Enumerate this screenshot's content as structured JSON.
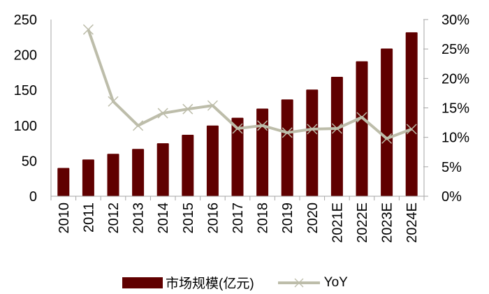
{
  "chart_data": {
    "type": "bar+line",
    "title": "",
    "categories": [
      "2010",
      "2011",
      "2012",
      "2013",
      "2014",
      "2015",
      "2016",
      "2017",
      "2018",
      "2019",
      "2020",
      "2021E",
      "2022E",
      "2023E",
      "2024E"
    ],
    "series": [
      {
        "name": "市场规模(亿元)",
        "type": "bar",
        "axis": "left",
        "color": "#600000",
        "values": [
          40,
          52,
          60,
          67,
          75,
          87,
          100,
          111,
          124,
          137,
          151,
          169,
          191,
          209,
          232
        ]
      },
      {
        "name": "YoY",
        "type": "line",
        "axis": "right",
        "color": "#BDBDAA",
        "marker": "x",
        "values": [
          null,
          28.3,
          16.1,
          12.0,
          14.1,
          14.8,
          15.4,
          11.5,
          12.0,
          10.8,
          11.4,
          11.5,
          13.4,
          9.8,
          11.4
        ]
      }
    ],
    "y_left": {
      "ticks": [
        "0",
        "50",
        "100",
        "150",
        "200",
        "250"
      ],
      "ylim": [
        0,
        250
      ]
    },
    "y_right": {
      "ticks": [
        "0%",
        "5%",
        "10%",
        "15%",
        "20%",
        "25%",
        "30%"
      ],
      "ylim": [
        0,
        30
      ]
    },
    "xlabel": "",
    "ylabel": "",
    "grid": false,
    "legend_position": "bottom"
  },
  "legend": {
    "bar_label": "市场规模(亿元)",
    "line_label": "YoY"
  }
}
